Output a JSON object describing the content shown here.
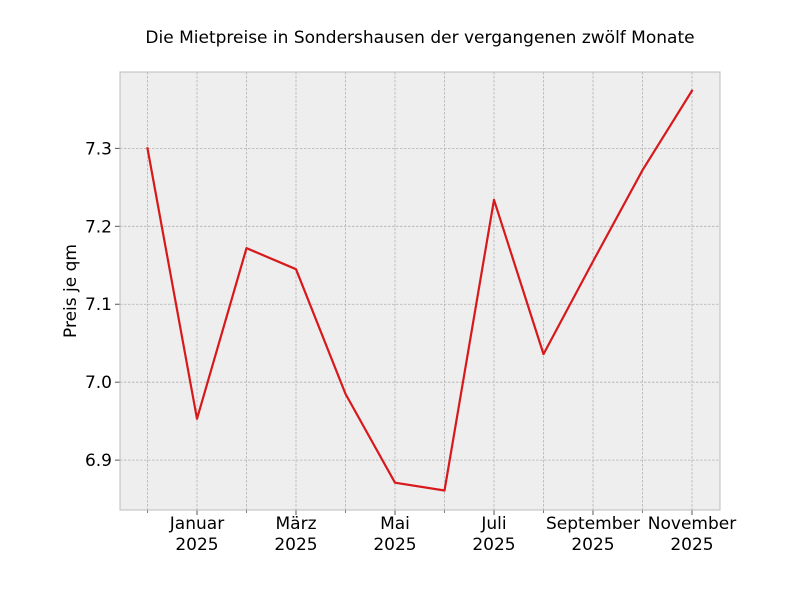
{
  "chart_data": {
    "type": "line",
    "title": "Die Mietpreise in Sondershausen der vergangenen zwölf Monate",
    "xlabel": "",
    "ylabel": "Preis je qm",
    "x": [
      "2024-12",
      "2025-01",
      "2025-02",
      "2025-03",
      "2025-04",
      "2025-05",
      "2025-06",
      "2025-07",
      "2025-08",
      "2025-09",
      "2025-10",
      "2025-11"
    ],
    "x_ticks": [
      {
        "x": "2025-01",
        "label": "Januar",
        "label2": "2025"
      },
      {
        "x": "2025-03",
        "label": "März",
        "label2": "2025"
      },
      {
        "x": "2025-05",
        "label": "Mai",
        "label2": "2025"
      },
      {
        "x": "2025-07",
        "label": "Juli",
        "label2": "2025"
      },
      {
        "x": "2025-09",
        "label": "September",
        "label2": "2025"
      },
      {
        "x": "2025-11",
        "label": "November",
        "label2": "2025"
      }
    ],
    "x_minor_ticks": [
      "2024-12",
      "2025-02",
      "2025-04",
      "2025-06",
      "2025-08",
      "2025-10"
    ],
    "series": [
      {
        "values": [
          7.3,
          6.953,
          7.172,
          7.145,
          6.985,
          6.871,
          6.861,
          7.234,
          7.036,
          7.155,
          7.272,
          7.374
        ]
      }
    ],
    "ylim": [
      6.836,
      7.398
    ],
    "y_ticks": [
      6.9,
      7.0,
      7.1,
      7.2,
      7.3
    ],
    "y_tick_labels": [
      "6.9",
      "7.0",
      "7.1",
      "7.2",
      "7.3"
    ],
    "grid": true,
    "line_color": "#d7191c",
    "plot_background": "#eeeeee"
  }
}
